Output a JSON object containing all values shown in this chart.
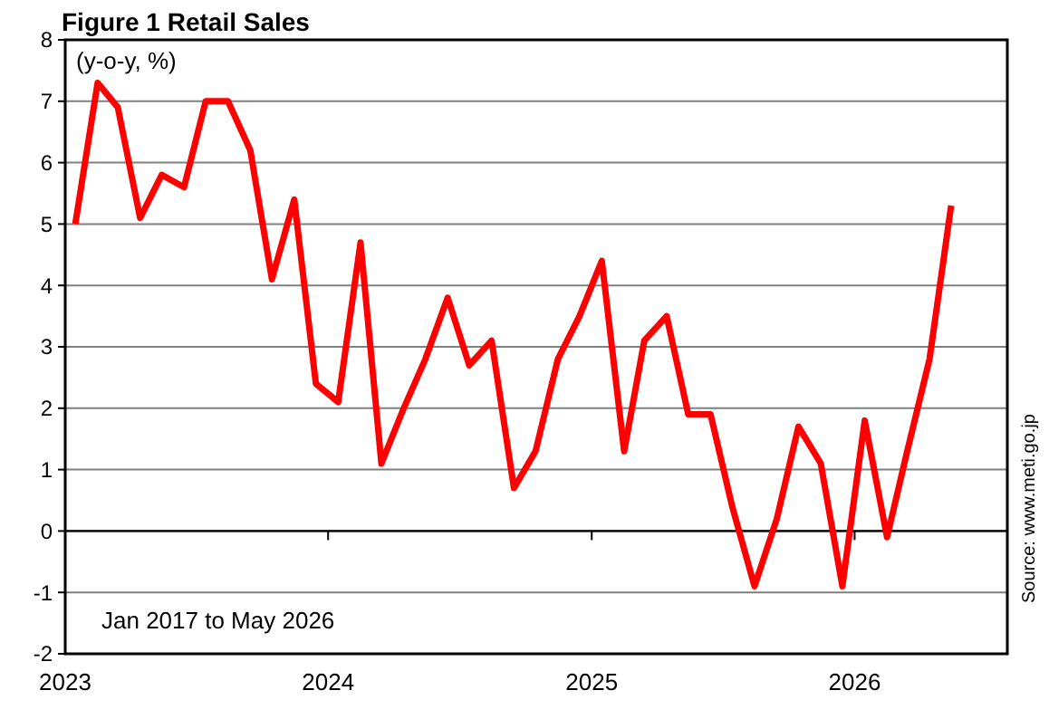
{
  "chart_data": {
    "type": "line",
    "title": "Figure 1 Retail Sales",
    "ylabel": "(y-o-y, %)",
    "annotations": [
      "Jan 2017 to May 2026",
      "Source: www.meti.go.jp"
    ],
    "x": [
      "2023-01-15",
      "2023-02-15",
      "2023-03-15",
      "2023-04-15",
      "2023-05-15",
      "2023-06-15",
      "2023-07-15",
      "2023-08-15",
      "2023-09-15",
      "2023-10-15",
      "2023-11-15",
      "2023-12-15",
      "2024-01-15",
      "2024-02-15",
      "2024-03-15",
      "2024-04-15",
      "2024-05-15",
      "2024-06-15",
      "2024-07-15",
      "2024-08-15",
      "2024-09-15",
      "2024-10-15",
      "2024-11-15",
      "2024-12-15",
      "2025-01-15",
      "2025-02-15",
      "2025-03-15",
      "2025-04-15",
      "2025-05-15",
      "2025-06-15",
      "2025-07-15",
      "2025-08-15",
      "2025-09-15",
      "2025-10-15",
      "2025-11-15",
      "2025-12-15",
      "2026-01-15",
      "2026-02-15",
      "2026-03-15",
      "2026-04-15",
      "2026-05-15"
    ],
    "series": [
      {
        "color": "#ff0000",
        "values": [
          5.0,
          7.3,
          6.9,
          5.1,
          5.8,
          5.6,
          7.0,
          7.0,
          6.2,
          4.1,
          5.4,
          2.4,
          2.1,
          4.7,
          1.1,
          2.0,
          2.8,
          3.8,
          2.7,
          3.1,
          0.7,
          1.3,
          2.8,
          3.5,
          4.4,
          1.3,
          3.1,
          3.5,
          1.9,
          1.9,
          0.4,
          -0.9,
          0.2,
          1.7,
          1.1,
          -0.9,
          1.8,
          -0.1,
          1.3,
          2.8,
          5.3
        ]
      }
    ],
    "xlim": [
      "2023-01-01",
      "2026-08-01"
    ],
    "xticks": [
      {
        "value": "2023-01-01",
        "label": "2023"
      },
      {
        "value": "2024-01-01",
        "label": "2024"
      },
      {
        "value": "2025-01-01",
        "label": "2025"
      },
      {
        "value": "2026-01-01",
        "label": "2026"
      }
    ],
    "ylim": [
      -2,
      8
    ],
    "yticks": [
      -2,
      -1,
      0,
      1,
      2,
      3,
      4,
      5,
      6,
      7,
      8
    ],
    "grid": "y",
    "marker": "none",
    "line_style": "solid"
  }
}
